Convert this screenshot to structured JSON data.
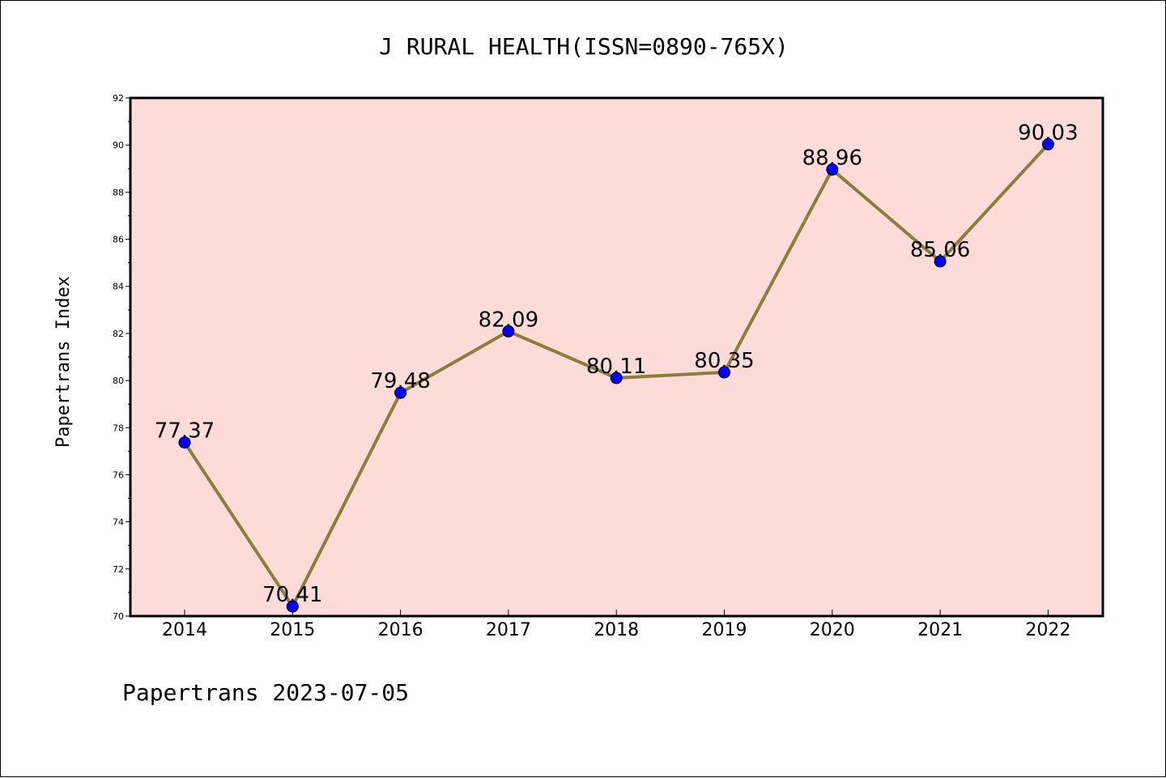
{
  "chart_data": {
    "type": "line",
    "title": "J RURAL HEALTH(ISSN=0890-765X)",
    "xlabel": "",
    "ylabel": "Papertrans Index",
    "categories": [
      "2014",
      "2015",
      "2016",
      "2017",
      "2018",
      "2019",
      "2020",
      "2021",
      "2022"
    ],
    "series": [
      {
        "values": [
          77.37,
          70.41,
          79.48,
          82.09,
          80.11,
          80.35,
          88.96,
          85.06,
          90.03
        ],
        "labels": [
          "77.37",
          "70.41",
          "79.48",
          "82.09",
          "80.11",
          "80.35",
          "88.96",
          "85.06",
          "90.03"
        ]
      }
    ],
    "ylim": [
      70,
      92
    ],
    "yticks": [
      "70",
      "72",
      "74",
      "76",
      "78",
      "80",
      "82",
      "84",
      "86",
      "88",
      "90",
      "92"
    ],
    "grid": false,
    "colors": {
      "plot_background": "#fddbd8",
      "line": "#8b7d3a",
      "marker": "#0000ff"
    }
  },
  "footer": "Papertrans 2023-07-05"
}
